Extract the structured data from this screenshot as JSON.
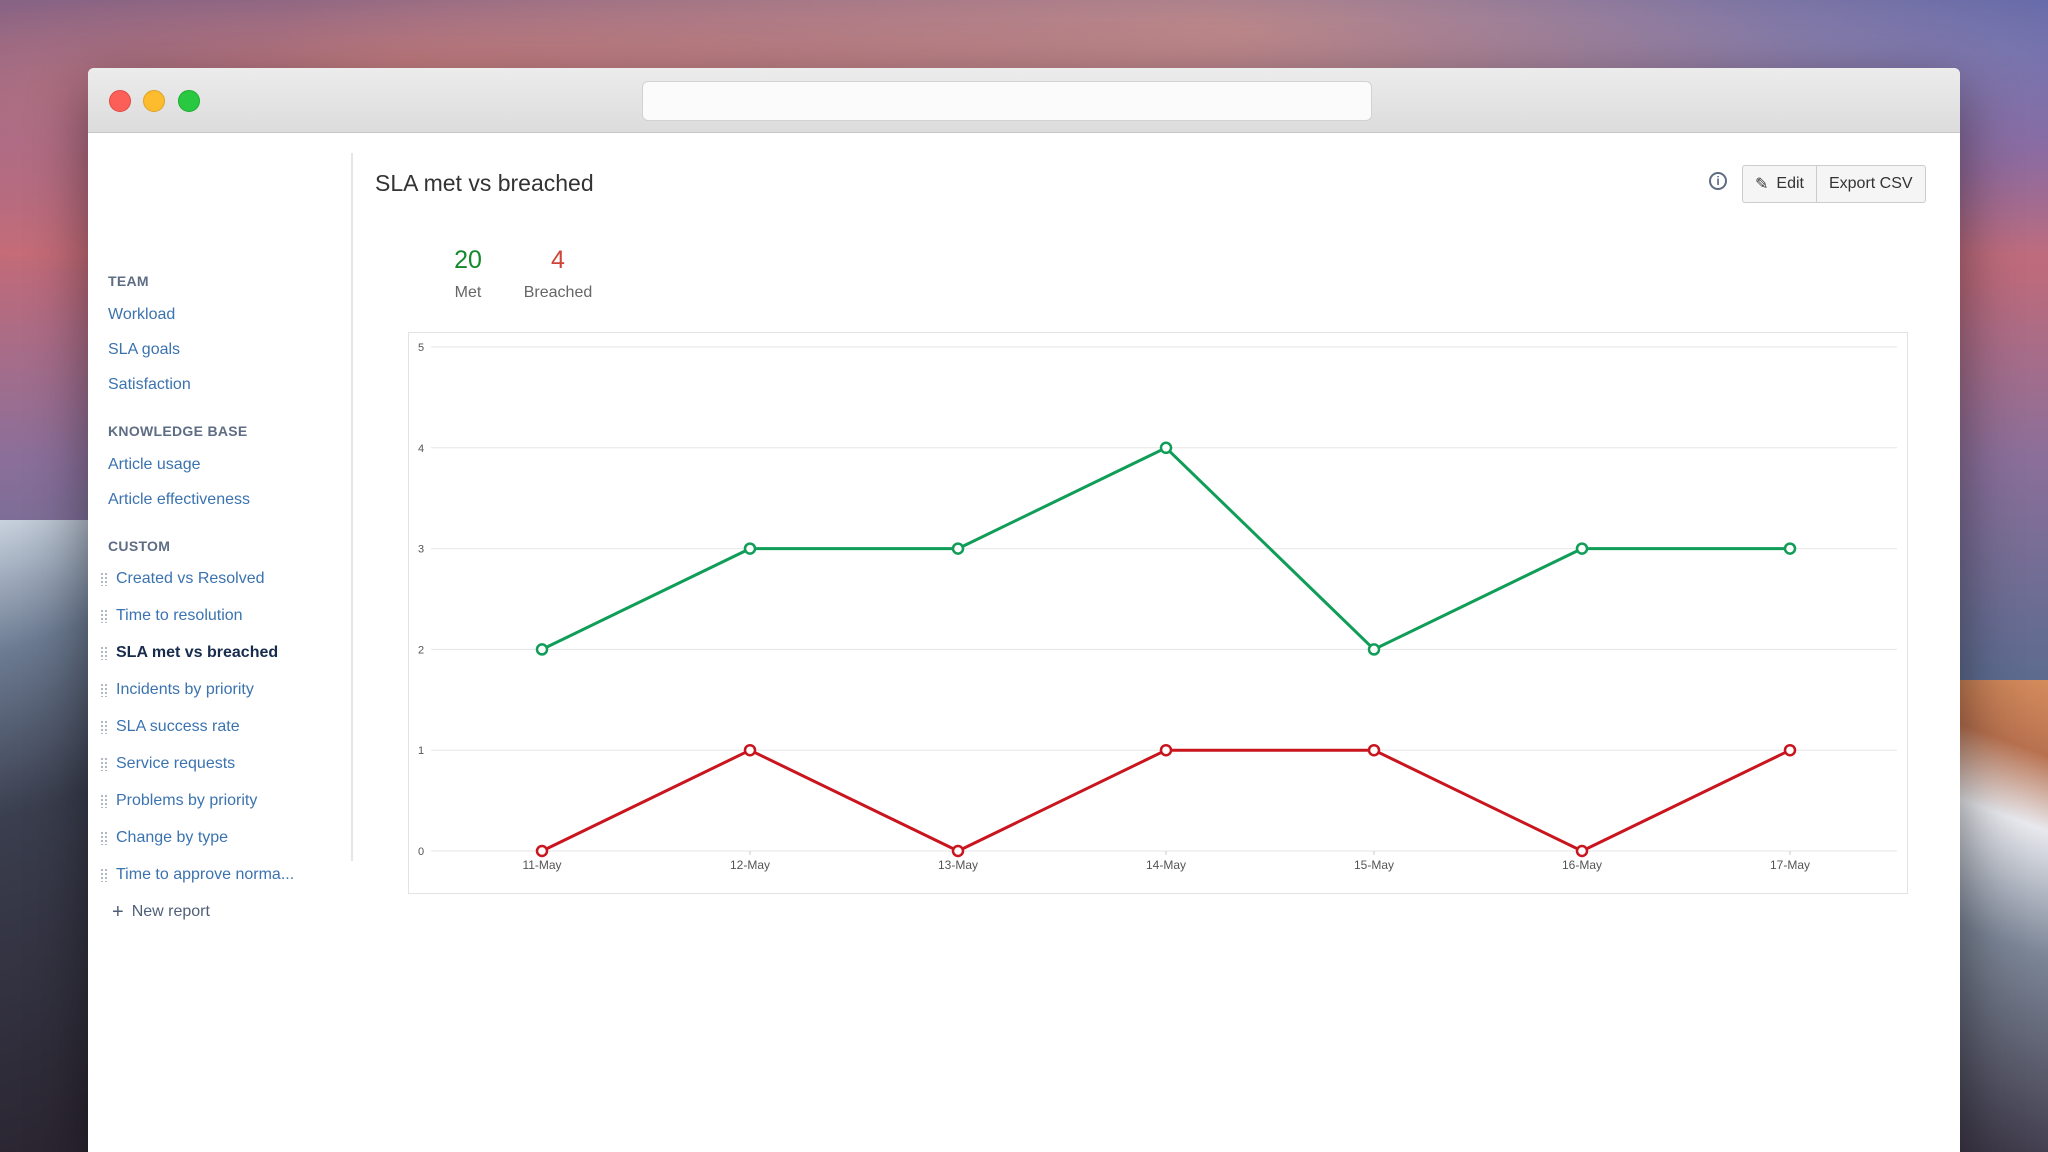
{
  "sidebar": {
    "team_heading": "TEAM",
    "team_items": [
      "Workload",
      "SLA goals",
      "Satisfaction"
    ],
    "kb_heading": "KNOWLEDGE BASE",
    "kb_items": [
      "Article usage",
      "Article effectiveness"
    ],
    "custom_heading": "CUSTOM",
    "custom_items": [
      "Created vs Resolved",
      "Time to resolution",
      "SLA met vs breached",
      "Incidents by priority",
      "SLA success rate",
      "Service requests",
      "Problems by priority",
      "Change by type",
      "Time to approve norma..."
    ],
    "active_item": "SLA met vs breached",
    "new_report_label": "New report"
  },
  "header": {
    "title": "SLA met vs breached",
    "edit_label": "Edit",
    "export_label": "Export CSV"
  },
  "stats": {
    "met_value": "20",
    "met_label": "Met",
    "breached_value": "4",
    "breached_label": "Breached"
  },
  "colors": {
    "met": "#0f9d58",
    "breached": "#c9151e",
    "met_stat": "#14892c",
    "breached_stat": "#d04437",
    "link": "#3b73af"
  },
  "chart_data": {
    "type": "line",
    "categories": [
      "11-May",
      "12-May",
      "13-May",
      "14-May",
      "15-May",
      "16-May",
      "17-May"
    ],
    "series": [
      {
        "name": "Met",
        "values": [
          2,
          3,
          3,
          4,
          2,
          3,
          3
        ]
      },
      {
        "name": "Breached",
        "values": [
          0,
          1,
          0,
          1,
          1,
          0,
          1
        ]
      }
    ],
    "yticks": [
      0,
      1,
      2,
      3,
      4,
      5
    ],
    "ylim": [
      0,
      5
    ],
    "grid": true
  }
}
